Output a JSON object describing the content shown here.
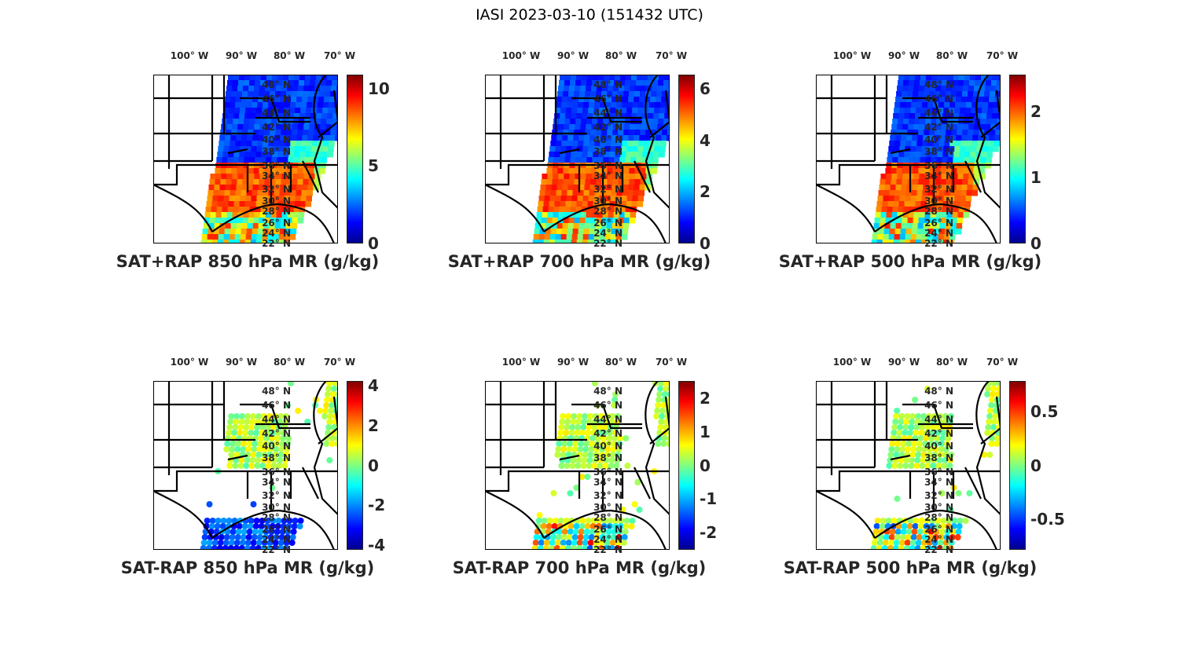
{
  "title": "IASI 2023-03-10 (151432 UTC)",
  "lat_labels": [
    "48° N",
    "46° N",
    "44° N",
    "42° N",
    "40° N",
    "38° N",
    "36° N",
    "34° N",
    "32° N",
    "30° N",
    "28° N",
    "26° N",
    "24° N",
    "22° N"
  ],
  "lon_labels": [
    "100° W",
    "90° W",
    "80° W",
    "70° W"
  ],
  "chart_data": [
    {
      "type": "heatmap",
      "title": "SAT+RAP 850 hPa MR (g/kg)",
      "clim": [
        0,
        10.9
      ],
      "colorbar_ticks": [
        {
          "v": 0,
          "label": "0"
        },
        {
          "v": 5,
          "label": "5"
        },
        {
          "v": 10,
          "label": "10"
        }
      ],
      "colormap": "jet",
      "field": "total"
    },
    {
      "type": "heatmap",
      "title": "SAT+RAP 700 hPa MR (g/kg)",
      "clim": [
        0,
        6.55
      ],
      "colorbar_ticks": [
        {
          "v": 0,
          "label": "0"
        },
        {
          "v": 2,
          "label": "2"
        },
        {
          "v": 4,
          "label": "4"
        },
        {
          "v": 6,
          "label": "6"
        }
      ],
      "colormap": "jet",
      "field": "total"
    },
    {
      "type": "heatmap",
      "title": "SAT+RAP 500 hPa MR (g/kg)",
      "clim": [
        0,
        2.56
      ],
      "colorbar_ticks": [
        {
          "v": 0,
          "label": "0"
        },
        {
          "v": 1,
          "label": "1"
        },
        {
          "v": 2,
          "label": "2"
        }
      ],
      "colormap": "jet",
      "field": "total"
    },
    {
      "type": "heatmap",
      "title": "SAT-RAP 850 hPa MR (g/kg)",
      "clim": [
        -4.24,
        4.24
      ],
      "colorbar_ticks": [
        {
          "v": -4,
          "label": "-4"
        },
        {
          "v": -2,
          "label": "-2"
        },
        {
          "v": 0,
          "label": "0"
        },
        {
          "v": 2,
          "label": "2"
        },
        {
          "v": 4,
          "label": "4"
        }
      ],
      "colormap": "jet",
      "field": "diff"
    },
    {
      "type": "heatmap",
      "title": "SAT-RAP 700 hPa MR (g/kg)",
      "clim": [
        -2.52,
        2.52
      ],
      "colorbar_ticks": [
        {
          "v": -2,
          "label": "-2"
        },
        {
          "v": -1,
          "label": "-1"
        },
        {
          "v": 0,
          "label": "0"
        },
        {
          "v": 1,
          "label": "1"
        },
        {
          "v": 2,
          "label": "2"
        }
      ],
      "colormap": "jet",
      "field": "diff"
    },
    {
      "type": "heatmap",
      "title": "SAT-RAP 500 hPa MR (g/kg)",
      "clim": [
        -0.79,
        0.79
      ],
      "colorbar_ticks": [
        {
          "v": -0.5,
          "label": "-0.5"
        },
        {
          "v": 0,
          "label": "0"
        },
        {
          "v": 0.5,
          "label": "0.5"
        }
      ],
      "colormap": "jet",
      "field": "diff"
    }
  ]
}
